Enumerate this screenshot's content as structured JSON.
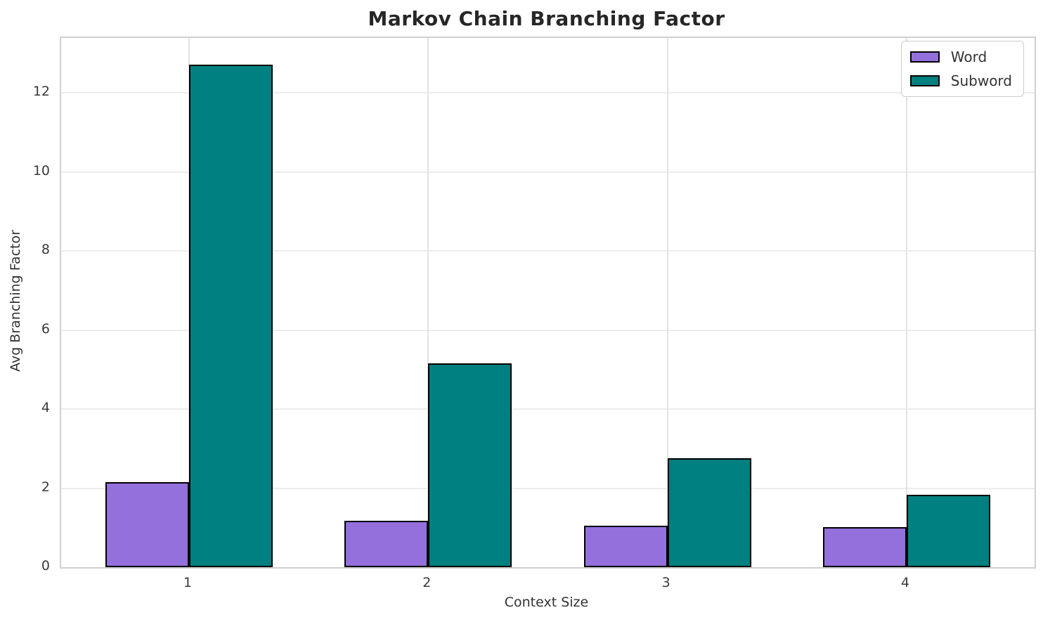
{
  "title": "Markov Chain Branching Factor",
  "chart_data": {
    "type": "bar",
    "title": "Markov Chain Branching Factor",
    "xlabel": "Context Size",
    "ylabel": "Avg Branching Factor",
    "categories": [
      "1",
      "2",
      "3",
      "4"
    ],
    "series": [
      {
        "name": "Word",
        "color": "#9370DB",
        "values": [
          2.15,
          1.18,
          1.05,
          1.02
        ]
      },
      {
        "name": "Subword",
        "color": "#008080",
        "values": [
          12.72,
          5.15,
          2.75,
          1.83
        ]
      }
    ],
    "yticks": [
      0,
      2,
      4,
      6,
      8,
      10,
      12
    ],
    "ylim": [
      0,
      13.39
    ],
    "xlim": [
      -0.535,
      3.535
    ],
    "bar_width_units": 0.35,
    "bar_edge_color": "#000000",
    "grid": true,
    "legend_position": "upper right",
    "colors": {
      "word": "#9370DB",
      "subword": "#008080",
      "grid_h": "#ececec",
      "grid_v": "#e2e2e2",
      "spine": "#d0d0d0",
      "title_text": "#262626",
      "tick_text": "#3a3a3a"
    }
  }
}
